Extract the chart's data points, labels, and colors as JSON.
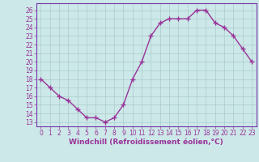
{
  "x": [
    0,
    1,
    2,
    3,
    4,
    5,
    6,
    7,
    8,
    9,
    10,
    11,
    12,
    13,
    14,
    15,
    16,
    17,
    18,
    19,
    20,
    21,
    22,
    23
  ],
  "y": [
    18,
    17,
    16,
    15.5,
    14.5,
    13.5,
    13.5,
    13,
    13.5,
    15,
    18,
    20,
    23,
    24.5,
    25,
    25,
    25,
    26,
    26,
    24.5,
    24,
    23,
    21.5,
    20
  ],
  "line_color": "#993399",
  "marker": "+",
  "marker_size": 4,
  "xlabel": "Windchill (Refroidissement éolien,°C)",
  "xlim": [
    -0.5,
    23.5
  ],
  "ylim_min": 12.5,
  "ylim_max": 26.8,
  "yticks": [
    13,
    14,
    15,
    16,
    17,
    18,
    19,
    20,
    21,
    22,
    23,
    24,
    25,
    26
  ],
  "xticks": [
    0,
    1,
    2,
    3,
    4,
    5,
    6,
    7,
    8,
    9,
    10,
    11,
    12,
    13,
    14,
    15,
    16,
    17,
    18,
    19,
    20,
    21,
    22,
    23
  ],
  "background_color": "#cce8e8",
  "grid_color": "#aacccc",
  "tick_fontsize": 5.5,
  "xlabel_fontsize": 6.5,
  "line_width": 1.0,
  "spine_color": "#7733aa"
}
